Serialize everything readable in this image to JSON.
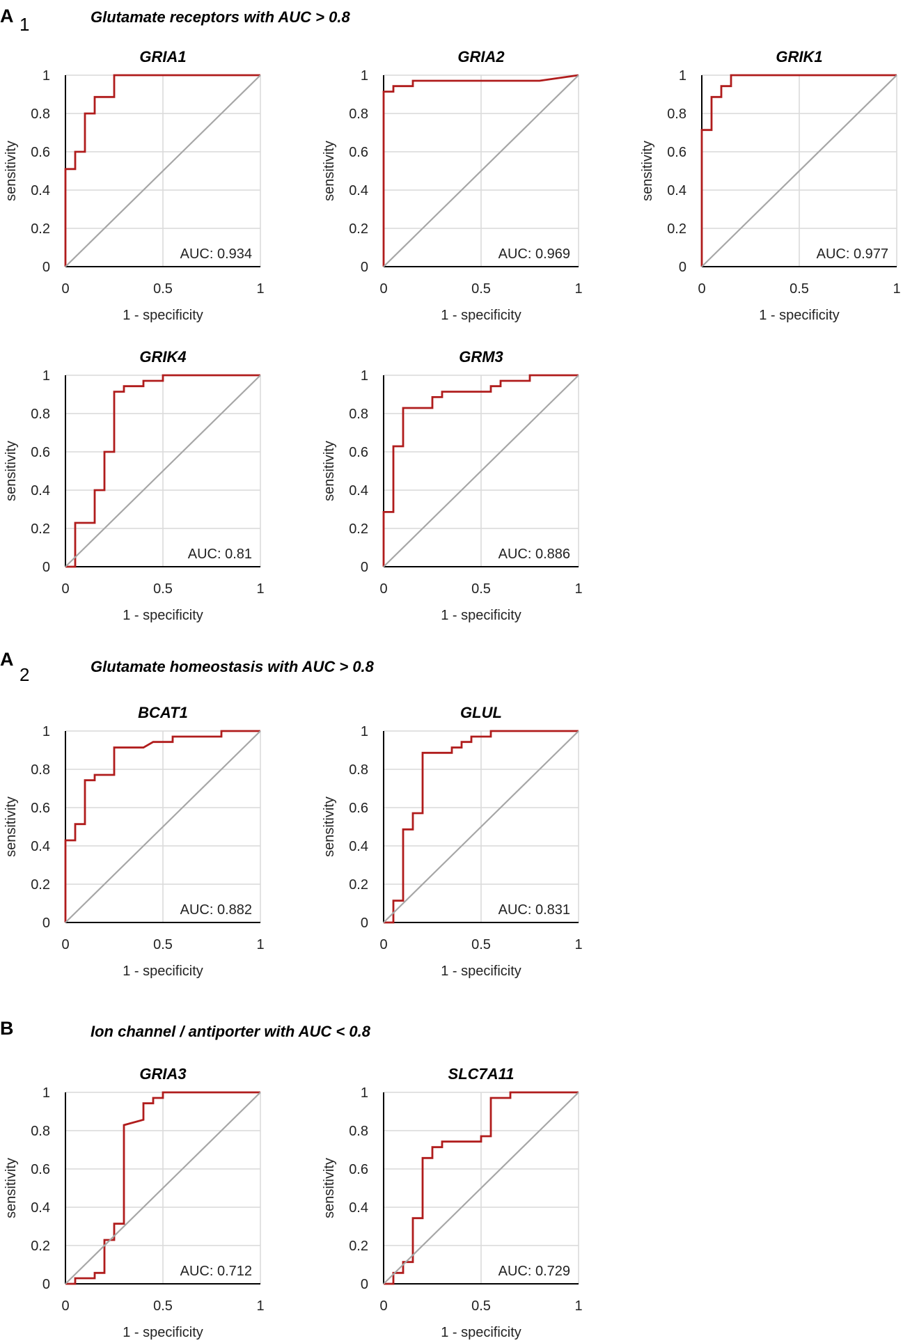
{
  "panels": [
    {
      "letter": "A",
      "subscript": "1",
      "title": "Glutamate receptors  with AUC > 0.8",
      "charts": [
        "GRIA1",
        "GRIA2",
        "GRIK1",
        "GRIK4",
        "GRM3"
      ]
    },
    {
      "letter": "A",
      "subscript": "2",
      "title": "Glutamate homeostasis with AUC > 0.8",
      "charts": [
        "BCAT1",
        "GLUL"
      ]
    },
    {
      "letter": "B",
      "subscript": "",
      "title": "Ion channel / antiporter with AUC < 0.8",
      "charts": [
        "GRIA3",
        "SLC7A11"
      ]
    }
  ],
  "chart_data": [
    {
      "type": "line",
      "title": "GRIA1",
      "xlabel": "1 - specificity",
      "ylabel": "sensitivity",
      "xlim": [
        0,
        1
      ],
      "ylim": [
        0,
        1
      ],
      "xticks": [
        "0",
        "0.5",
        "1"
      ],
      "yticks": [
        "0",
        "0.2",
        "0.4",
        "0.6",
        "0.8",
        "1"
      ],
      "auc_text": "AUC: 0.934",
      "series": [
        {
          "name": "ROC",
          "x": [
            0,
            0,
            0.05,
            0.05,
            0.1,
            0.1,
            0.15,
            0.15,
            0.25,
            0.25,
            1
          ],
          "y": [
            0,
            0.51,
            0.51,
            0.6,
            0.6,
            0.8,
            0.8,
            0.886,
            0.886,
            1,
            1
          ]
        },
        {
          "name": "reference",
          "x": [
            0,
            1
          ],
          "y": [
            0,
            1
          ]
        }
      ]
    },
    {
      "type": "line",
      "title": "GRIA2",
      "xlabel": "1 - specificity",
      "ylabel": "sensitivity",
      "xlim": [
        0,
        1
      ],
      "ylim": [
        0,
        1
      ],
      "xticks": [
        "0",
        "0.5",
        "1"
      ],
      "yticks": [
        "0",
        "0.2",
        "0.4",
        "0.6",
        "0.8",
        "1"
      ],
      "auc_text": "AUC: 0.969",
      "series": [
        {
          "name": "ROC",
          "x": [
            0,
            0,
            0.05,
            0.05,
            0.15,
            0.15,
            0.8,
            1
          ],
          "y": [
            0,
            0.914,
            0.914,
            0.943,
            0.943,
            0.971,
            0.971,
            1
          ]
        },
        {
          "name": "reference",
          "x": [
            0,
            1
          ],
          "y": [
            0,
            1
          ]
        }
      ]
    },
    {
      "type": "line",
      "title": "GRIK1",
      "xlabel": "1 - specificity",
      "ylabel": "sensitivity",
      "xlim": [
        0,
        1
      ],
      "ylim": [
        0,
        1
      ],
      "xticks": [
        "0",
        "0.5",
        "1"
      ],
      "yticks": [
        "0",
        "0.2",
        "0.4",
        "0.6",
        "0.8",
        "1"
      ],
      "auc_text": "AUC: 0.977",
      "series": [
        {
          "name": "ROC",
          "x": [
            0,
            0,
            0.05,
            0.05,
            0.1,
            0.1,
            0.15,
            0.15,
            1
          ],
          "y": [
            0,
            0.714,
            0.714,
            0.886,
            0.886,
            0.943,
            0.943,
            1,
            1
          ]
        },
        {
          "name": "reference",
          "x": [
            0,
            1
          ],
          "y": [
            0,
            1
          ]
        }
      ]
    },
    {
      "type": "line",
      "title": "GRIK4",
      "xlabel": "1 - specificity",
      "ylabel": "sensitivity",
      "xlim": [
        0,
        1
      ],
      "ylim": [
        0,
        1
      ],
      "xticks": [
        "0",
        "0.5",
        "1"
      ],
      "yticks": [
        "0",
        "0.2",
        "0.4",
        "0.6",
        "0.8",
        "1"
      ],
      "auc_text": "AUC: 0.81",
      "series": [
        {
          "name": "ROC",
          "x": [
            0,
            0.05,
            0.05,
            0.15,
            0.15,
            0.2,
            0.2,
            0.25,
            0.25,
            0.3,
            0.3,
            0.4,
            0.4,
            0.5,
            0.5,
            1
          ],
          "y": [
            0,
            0,
            0.229,
            0.229,
            0.4,
            0.4,
            0.6,
            0.6,
            0.914,
            0.914,
            0.943,
            0.943,
            0.971,
            0.971,
            1,
            1
          ]
        },
        {
          "name": "reference",
          "x": [
            0,
            1
          ],
          "y": [
            0,
            1
          ]
        }
      ]
    },
    {
      "type": "line",
      "title": "GRM3",
      "xlabel": "1 - specificity",
      "ylabel": "sensitivity",
      "xlim": [
        0,
        1
      ],
      "ylim": [
        0,
        1
      ],
      "xticks": [
        "0",
        "0.5",
        "1"
      ],
      "yticks": [
        "0",
        "0.2",
        "0.4",
        "0.6",
        "0.8",
        "1"
      ],
      "auc_text": "AUC: 0.886",
      "series": [
        {
          "name": "ROC",
          "x": [
            0,
            0,
            0.05,
            0.05,
            0.1,
            0.1,
            0.25,
            0.25,
            0.3,
            0.3,
            0.55,
            0.55,
            0.6,
            0.6,
            0.75,
            0.75,
            1
          ],
          "y": [
            0,
            0.286,
            0.286,
            0.629,
            0.629,
            0.829,
            0.829,
            0.886,
            0.886,
            0.914,
            0.914,
            0.943,
            0.943,
            0.971,
            0.971,
            1,
            1
          ]
        },
        {
          "name": "reference",
          "x": [
            0,
            1
          ],
          "y": [
            0,
            1
          ]
        }
      ]
    },
    {
      "type": "line",
      "title": "BCAT1",
      "xlabel": "1 - specificity",
      "ylabel": "sensitivity",
      "xlim": [
        0,
        1
      ],
      "ylim": [
        0,
        1
      ],
      "xticks": [
        "0",
        "0.5",
        "1"
      ],
      "yticks": [
        "0",
        "0.2",
        "0.4",
        "0.6",
        "0.8",
        "1"
      ],
      "auc_text": "AUC: 0.882",
      "series": [
        {
          "name": "ROC",
          "x": [
            0,
            0,
            0.05,
            0.05,
            0.1,
            0.1,
            0.15,
            0.15,
            0.25,
            0.25,
            0.4,
            0.45,
            0.55,
            0.55,
            0.8,
            0.8,
            1
          ],
          "y": [
            0,
            0.429,
            0.429,
            0.514,
            0.514,
            0.743,
            0.743,
            0.771,
            0.771,
            0.914,
            0.914,
            0.943,
            0.943,
            0.971,
            0.971,
            1,
            1
          ]
        },
        {
          "name": "reference",
          "x": [
            0,
            1
          ],
          "y": [
            0,
            1
          ]
        }
      ]
    },
    {
      "type": "line",
      "title": "GLUL",
      "xlabel": "1 - specificity",
      "ylabel": "sensitivity",
      "xlim": [
        0,
        1
      ],
      "ylim": [
        0,
        1
      ],
      "xticks": [
        "0",
        "0.5",
        "1"
      ],
      "yticks": [
        "0",
        "0.2",
        "0.4",
        "0.6",
        "0.8",
        "1"
      ],
      "auc_text": "AUC: 0.831",
      "series": [
        {
          "name": "ROC",
          "x": [
            0,
            0.05,
            0.05,
            0.1,
            0.1,
            0.15,
            0.15,
            0.2,
            0.2,
            0.35,
            0.35,
            0.4,
            0.4,
            0.45,
            0.45,
            0.55,
            0.55,
            1
          ],
          "y": [
            0,
            0,
            0.114,
            0.114,
            0.486,
            0.486,
            0.571,
            0.571,
            0.886,
            0.886,
            0.914,
            0.914,
            0.943,
            0.943,
            0.971,
            0.971,
            1,
            1
          ]
        },
        {
          "name": "reference",
          "x": [
            0,
            1
          ],
          "y": [
            0,
            1
          ]
        }
      ]
    },
    {
      "type": "line",
      "title": "GRIA3",
      "xlabel": "1 - specificity",
      "ylabel": "sensitivity",
      "xlim": [
        0,
        1
      ],
      "ylim": [
        0,
        1
      ],
      "xticks": [
        "0",
        "0.5",
        "1"
      ],
      "yticks": [
        "0",
        "0.2",
        "0.4",
        "0.6",
        "0.8",
        "1"
      ],
      "auc_text": "AUC: 0.712",
      "series": [
        {
          "name": "ROC",
          "x": [
            0,
            0.05,
            0.05,
            0.15,
            0.15,
            0.2,
            0.2,
            0.25,
            0.25,
            0.3,
            0.3,
            0.4,
            0.4,
            0.45,
            0.45,
            0.5,
            0.5,
            1
          ],
          "y": [
            0,
            0,
            0.029,
            0.029,
            0.057,
            0.057,
            0.229,
            0.229,
            0.314,
            0.314,
            0.829,
            0.857,
            0.943,
            0.943,
            0.971,
            0.971,
            1,
            1
          ]
        },
        {
          "name": "reference",
          "x": [
            0,
            1
          ],
          "y": [
            0,
            1
          ]
        }
      ]
    },
    {
      "type": "line",
      "title": "SLC7A11",
      "xlabel": "1 - specificity",
      "ylabel": "sensitivity",
      "xlim": [
        0,
        1
      ],
      "ylim": [
        0,
        1
      ],
      "xticks": [
        "0",
        "0.5",
        "1"
      ],
      "yticks": [
        "0",
        "0.2",
        "0.4",
        "0.6",
        "0.8",
        "1"
      ],
      "auc_text": "AUC: 0.729",
      "series": [
        {
          "name": "ROC",
          "x": [
            0,
            0.05,
            0.05,
            0.1,
            0.1,
            0.15,
            0.15,
            0.2,
            0.2,
            0.25,
            0.25,
            0.3,
            0.3,
            0.5,
            0.5,
            0.55,
            0.55,
            0.65,
            0.65,
            1
          ],
          "y": [
            0,
            0,
            0.057,
            0.057,
            0.114,
            0.114,
            0.343,
            0.343,
            0.657,
            0.657,
            0.714,
            0.714,
            0.743,
            0.743,
            0.771,
            0.771,
            0.971,
            0.971,
            1,
            1
          ]
        },
        {
          "name": "reference",
          "x": [
            0,
            1
          ],
          "y": [
            0,
            1
          ]
        }
      ]
    }
  ]
}
